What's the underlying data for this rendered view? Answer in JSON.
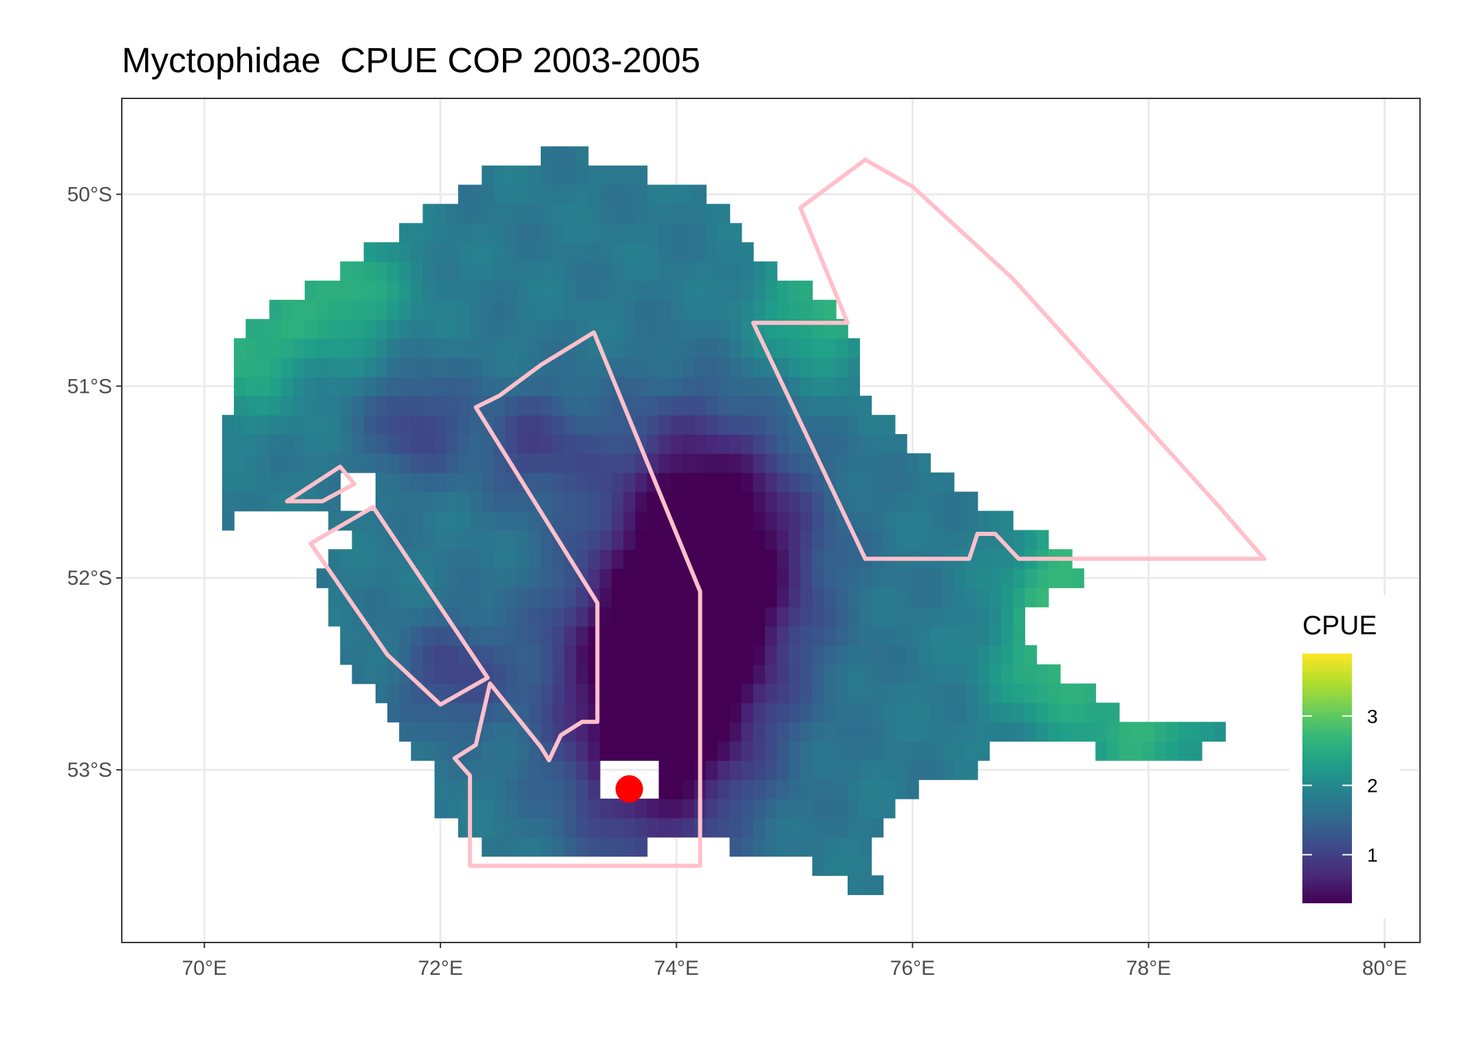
{
  "title": "Myctophidae  CPUE COP 2003-2005",
  "map": {
    "x_ticks": [
      {
        "lon": 70,
        "label": "70°E"
      },
      {
        "lon": 72,
        "label": "72°E"
      },
      {
        "lon": 74,
        "label": "74°E"
      },
      {
        "lon": 76,
        "label": "76°E"
      },
      {
        "lon": 78,
        "label": "78°E"
      },
      {
        "lon": 80,
        "label": "80°E"
      }
    ],
    "y_ticks": [
      {
        "lat": -50,
        "label": "50°S"
      },
      {
        "lat": -51,
        "label": "51°S"
      },
      {
        "lat": -52,
        "label": "52°S"
      },
      {
        "lat": -53,
        "label": "53°S"
      }
    ],
    "lon_range": [
      69.3,
      80.3
    ],
    "lat_range": [
      -53.9,
      -49.5
    ],
    "background": "#ffffff",
    "grid": true,
    "grid_color": "#ebebeb",
    "panel_border": "#333333",
    "overlay_color": "#ffc0cb",
    "marker_color": "#ff0000",
    "marker": {
      "lon": 73.6,
      "lat": -53.1
    },
    "overlay_polygons": [
      {
        "name": "zone-west-strip",
        "coords": [
          [
            70.7,
            -51.6
          ],
          [
            71.15,
            -51.42
          ],
          [
            71.27,
            -51.51
          ],
          [
            71.0,
            -51.6
          ]
        ]
      },
      {
        "name": "zone-south-west",
        "coords": [
          [
            70.9,
            -51.82
          ],
          [
            71.43,
            -51.63
          ],
          [
            72.4,
            -52.52
          ],
          [
            72.0,
            -52.66
          ],
          [
            71.55,
            -52.4
          ]
        ]
      },
      {
        "name": "zone-central",
        "coords": [
          [
            73.3,
            -50.72
          ],
          [
            74.2,
            -52.07
          ],
          [
            74.2,
            -53.5
          ],
          [
            72.25,
            -53.5
          ],
          [
            72.25,
            -53.03
          ],
          [
            72.12,
            -52.94
          ],
          [
            72.3,
            -52.87
          ],
          [
            72.42,
            -52.55
          ],
          [
            72.85,
            -52.88
          ],
          [
            72.92,
            -52.95
          ],
          [
            73.02,
            -52.82
          ],
          [
            73.2,
            -52.75
          ],
          [
            73.33,
            -52.75
          ],
          [
            73.33,
            -52.13
          ],
          [
            72.3,
            -51.11
          ],
          [
            72.5,
            -51.05
          ],
          [
            72.85,
            -50.89
          ]
        ]
      },
      {
        "name": "zone-east",
        "coords": [
          [
            74.65,
            -50.67
          ],
          [
            75.45,
            -50.67
          ],
          [
            75.05,
            -50.07
          ],
          [
            75.6,
            -49.82
          ],
          [
            76.0,
            -49.96
          ],
          [
            76.85,
            -50.44
          ],
          [
            77.6,
            -50.95
          ],
          [
            78.6,
            -51.63
          ],
          [
            78.98,
            -51.9
          ],
          [
            76.9,
            -51.9
          ],
          [
            76.7,
            -51.77
          ],
          [
            76.55,
            -51.77
          ],
          [
            76.48,
            -51.9
          ],
          [
            75.6,
            -51.9
          ]
        ]
      }
    ],
    "cpue_field": {
      "color_low": "#440154",
      "color_mid": "#21918c",
      "color_high": "#fde725",
      "trough": [
        {
          "lon": 73.8,
          "lat": -53.0
        },
        {
          "lon": 74.2,
          "lat": -52.5
        },
        {
          "lon": 74.5,
          "lat": -51.9
        },
        {
          "lon": 74.1,
          "lat": -51.6
        },
        {
          "lon": 73.6,
          "lat": -52.4
        }
      ],
      "lows": [
        {
          "lon": 71.8,
          "lat": -51.2
        },
        {
          "lon": 72.8,
          "lat": -51.3
        },
        {
          "lon": 72.1,
          "lat": -52.5
        }
      ],
      "highs": [
        {
          "lon": 70.3,
          "lat": -50.8
        },
        {
          "lon": 71.2,
          "lat": -50.5
        },
        {
          "lon": 75.2,
          "lat": -50.6
        },
        {
          "lon": 77.2,
          "lat": -52.45
        },
        {
          "lon": 78.0,
          "lat": -52.8
        },
        {
          "lon": 77.35,
          "lat": -51.95
        }
      ]
    }
  },
  "legend": {
    "title": "CPUE",
    "min": 0.3,
    "max": 3.9,
    "ticks": [
      {
        "value": 1,
        "label": "1"
      },
      {
        "value": 2,
        "label": "2"
      },
      {
        "value": 3,
        "label": "3"
      }
    ],
    "colors": [
      "#440154",
      "#482878",
      "#3e4989",
      "#31688e",
      "#26828e",
      "#1f9e89",
      "#35b779",
      "#6ece58",
      "#b5de2b",
      "#fde725"
    ]
  }
}
